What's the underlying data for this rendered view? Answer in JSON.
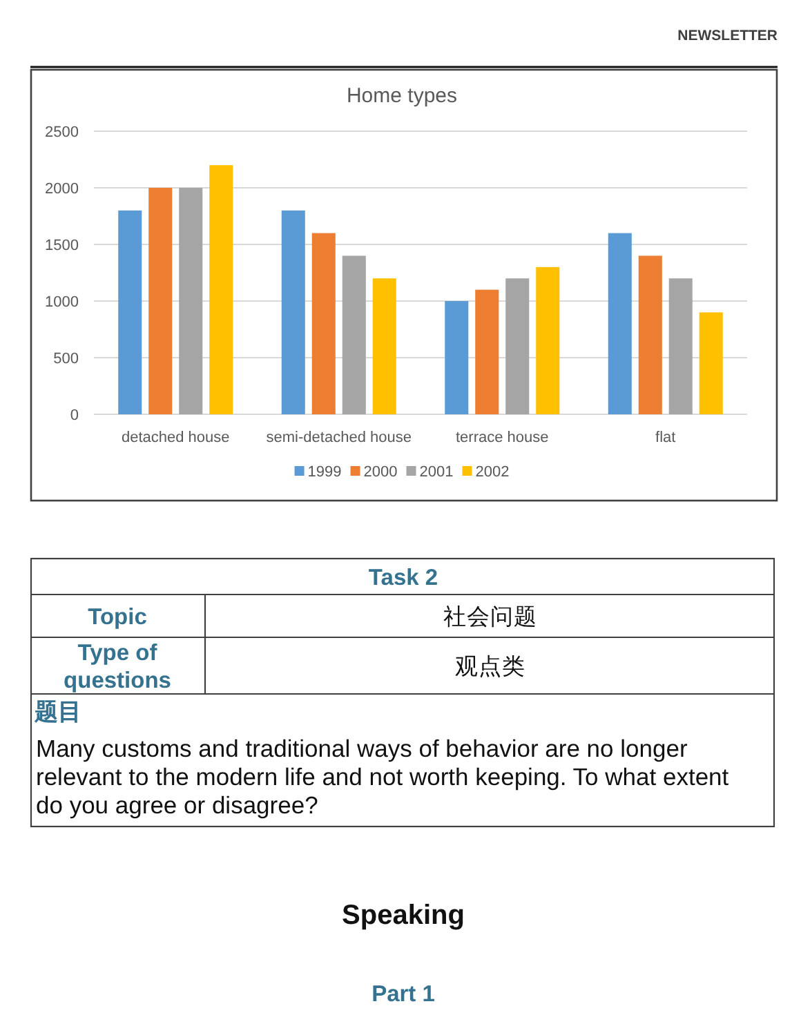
{
  "chart_data": [
    {
      "type": "other",
      "annotations": [
        "NEWSLETTER"
      ]
    },
    {
      "type": "bar",
      "title": "Home types",
      "categories": [
        "detached house",
        "semi-detached house",
        "terrace house",
        "flat"
      ],
      "series": [
        {
          "name": "1999",
          "color": "#5b9bd5",
          "values": [
            1800,
            1800,
            1000,
            1600
          ]
        },
        {
          "name": "2000",
          "color": "#ed7d31",
          "values": [
            2000,
            1600,
            1100,
            1400
          ]
        },
        {
          "name": "2001",
          "color": "#a5a5a5",
          "values": [
            2000,
            1400,
            1200,
            1200
          ]
        },
        {
          "name": "2002",
          "color": "#ffc000",
          "values": [
            2200,
            1200,
            1300,
            900
          ]
        }
      ],
      "ylim": [
        0,
        2500
      ],
      "yticks": [
        0,
        500,
        1000,
        1500,
        2000,
        2500
      ],
      "grid": "y",
      "legend": "bottom"
    },
    {
      "type": "other",
      "title": "Task 2",
      "annotations": [
        "Topic",
        "社会问题",
        "Type of questions",
        "观点类",
        "题目",
        "Many customs and traditional ways of behavior are no longer relevant to the modern life and not worth keeping. To what extent do you agree or disagree?",
        "Speaking",
        "Part 1"
      ]
    }
  ]
}
